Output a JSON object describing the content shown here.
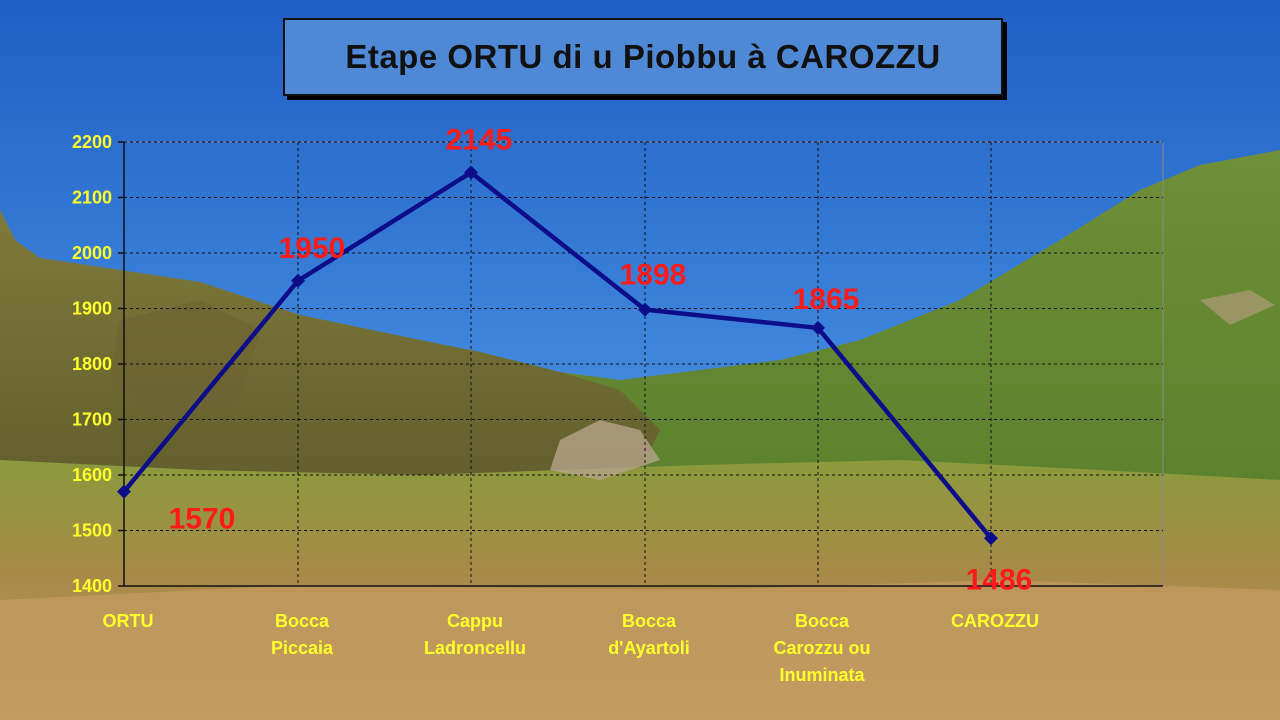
{
  "chart_data": {
    "type": "line",
    "title": "Etape ORTU di u Piobbu à CAROZZU",
    "categories": [
      [
        "ORTU"
      ],
      [
        "Bocca",
        "Piccaia"
      ],
      [
        "Cappu",
        "Ladroncellu"
      ],
      [
        "Bocca",
        "d'Ayartoli"
      ],
      [
        "Bocca",
        "Carozzu ou",
        "Inuminata"
      ],
      [
        "CAROZZU"
      ]
    ],
    "series": [
      {
        "values": [
          1570,
          1950,
          2145,
          1898,
          1865,
          1486
        ]
      }
    ],
    "data_labels": [
      "1570",
      "1950",
      "2145",
      "1898",
      "1865",
      "1486"
    ],
    "ylim": [
      1400,
      2200
    ],
    "yticks": [
      1400,
      1500,
      1600,
      1700,
      1800,
      1900,
      2000,
      2100,
      2200
    ],
    "grid": true,
    "legend": "none",
    "colors": {
      "line": "#0d0d8a",
      "data_label": "#ff1a1a",
      "tick_label": "#ffff2a",
      "title_box": "#4f89d6"
    }
  }
}
